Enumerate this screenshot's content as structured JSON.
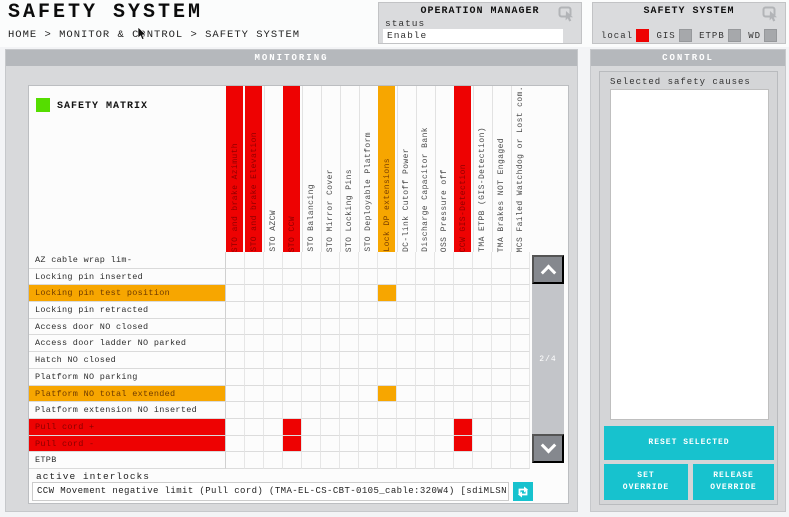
{
  "header": {
    "title": "SAFETY SYSTEM",
    "breadcrumb": "HOME > MONITOR & CONTROL > SAFETY SYSTEM",
    "operation_manager": {
      "title": "OPERATION MANAGER",
      "status_label": "status",
      "status_value": "Enable"
    },
    "safety_system_box": {
      "title": "SAFETY SYSTEM",
      "indicators": [
        {
          "label": "local",
          "color": "#ee0202"
        },
        {
          "label": "GIS",
          "color": "#a6a8ab"
        },
        {
          "label": "ETPB",
          "color": "#a6a8ab"
        },
        {
          "label": "WD",
          "color": "#a6a8ab"
        }
      ]
    }
  },
  "monitoring": {
    "title": "MONITORING",
    "legend_label": "SAFETY MATRIX",
    "legend_color": "#55dd00",
    "pager": "2/4",
    "columns": [
      {
        "label": "STO and brake Azimuth",
        "state": "red"
      },
      {
        "label": "STO and brake Elevation",
        "state": "red"
      },
      {
        "label": "STO AZCW",
        "state": "none"
      },
      {
        "label": "STO CCW",
        "state": "red"
      },
      {
        "label": "STO Balancing",
        "state": "none"
      },
      {
        "label": "STO Mirror Cover",
        "state": "none"
      },
      {
        "label": "STO Locking Pins",
        "state": "none"
      },
      {
        "label": "STO Deployable Platform",
        "state": "none"
      },
      {
        "label": "Lock DP extensions",
        "state": "orange"
      },
      {
        "label": "DC-link Cutoff Power",
        "state": "none"
      },
      {
        "label": "Discharge Capacitor Bank",
        "state": "none"
      },
      {
        "label": "OSS Pressure off",
        "state": "none"
      },
      {
        "label": "CCW GIS-Detection",
        "state": "red"
      },
      {
        "label": "TMA ETPB (GIS-Detection)",
        "state": "none"
      },
      {
        "label": "TMA Brakes NOT Engaged",
        "state": "none"
      },
      {
        "label": "MCS Failed Watchdog or Lost com.",
        "state": "none"
      }
    ],
    "rows": [
      {
        "label": "AZ cable wrap lim-",
        "state": "none",
        "cells": []
      },
      {
        "label": "Locking pin inserted",
        "state": "none",
        "cells": []
      },
      {
        "label": "Locking pin test position",
        "state": "orange",
        "cells": [
          {
            "col": 8,
            "color": "orange"
          }
        ]
      },
      {
        "label": "Locking pin retracted",
        "state": "none",
        "cells": []
      },
      {
        "label": "Access door NO closed",
        "state": "none",
        "cells": []
      },
      {
        "label": "Access door ladder NO parked",
        "state": "none",
        "cells": []
      },
      {
        "label": "Hatch NO closed",
        "state": "none",
        "cells": []
      },
      {
        "label": "Platform NO parking",
        "state": "none",
        "cells": []
      },
      {
        "label": "Platform NO total extended",
        "state": "orange",
        "cells": [
          {
            "col": 8,
            "color": "orange"
          }
        ]
      },
      {
        "label": "Platform extension NO inserted",
        "state": "none",
        "cells": []
      },
      {
        "label": "Pull cord +",
        "state": "red",
        "cells": [
          {
            "col": 3,
            "color": "red"
          },
          {
            "col": 12,
            "color": "red"
          }
        ]
      },
      {
        "label": "Pull cord -",
        "state": "red",
        "cells": [
          {
            "col": 3,
            "color": "red"
          },
          {
            "col": 12,
            "color": "red"
          }
        ]
      },
      {
        "label": "ETPB",
        "state": "none",
        "cells": []
      }
    ],
    "active_interlocks": {
      "label": "active interlocks",
      "value": "CCW Movement negative limit (Pull cord) (TMA-EL-CS-CBT-0105_cable:320W4) [sdiMLSN]"
    }
  },
  "control": {
    "title": "CONTROL",
    "selected_label": "Selected safety causes",
    "buttons": {
      "reset": "RESET SELECTED",
      "set_override": "SET OVERRIDE",
      "release_override": "RELEASE OVERRIDE"
    }
  },
  "colors": {
    "red": "#ee0202",
    "orange": "#f7a600",
    "cyan": "#17c2ce",
    "green": "#55dd00"
  }
}
